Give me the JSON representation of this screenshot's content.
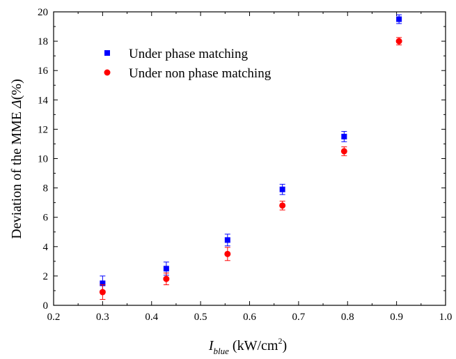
{
  "chart_data": {
    "type": "scatter",
    "xlabel": {
      "var": "I",
      "sub": "blue",
      "unit_pre": " (kW/cm",
      "unit_sup": "2",
      "unit_post": ")"
    },
    "ylabel": {
      "pre": "Deviation of the MME ",
      "symbol": "Δ",
      "post": "(%)"
    },
    "xlim": [
      0.2,
      1.0
    ],
    "ylim": [
      0,
      20
    ],
    "xticks": [
      "0.2",
      "0.3",
      "0.4",
      "0.5",
      "0.6",
      "0.7",
      "0.8",
      "0.9",
      "1.0"
    ],
    "yticks": [
      "0",
      "2",
      "4",
      "6",
      "8",
      "10",
      "12",
      "14",
      "16",
      "18",
      "20"
    ],
    "grid": false,
    "legend_position": "top-left",
    "series": [
      {
        "name": "Under phase matching",
        "marker": "square",
        "color": "#0000ff",
        "x": [
          0.3,
          0.43,
          0.555,
          0.667,
          0.793,
          0.905
        ],
        "y": [
          1.5,
          2.5,
          4.45,
          7.9,
          11.5,
          19.5
        ],
        "err": [
          0.5,
          0.45,
          0.4,
          0.35,
          0.35,
          0.3
        ]
      },
      {
        "name": "Under non phase matching",
        "marker": "circle",
        "color": "#ff0000",
        "x": [
          0.3,
          0.43,
          0.555,
          0.667,
          0.793,
          0.905
        ],
        "y": [
          0.9,
          1.8,
          3.5,
          6.8,
          10.5,
          18.0
        ],
        "err": [
          0.5,
          0.4,
          0.45,
          0.3,
          0.3,
          0.25
        ]
      }
    ]
  }
}
